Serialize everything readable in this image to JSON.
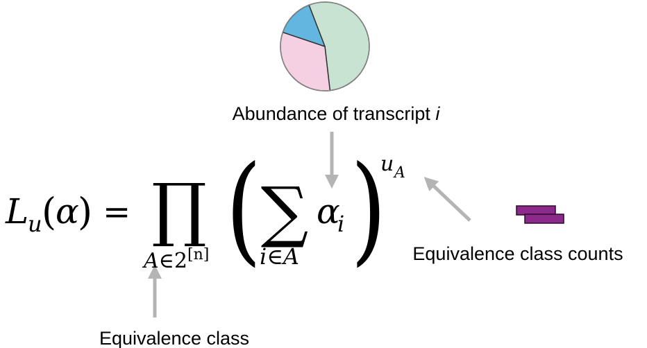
{
  "chart_data": {
    "type": "pie",
    "categories": [
      "",
      "",
      ""
    ],
    "values": [
      54,
      32,
      14
    ],
    "colors": [
      "#c9e3d3",
      "#f5cfe2",
      "#63b6e0"
    ]
  },
  "labels": {
    "abundance_text": "Abundance of transcript ",
    "abundance_var": "i",
    "counts": "Equivalence class counts",
    "class": "Equivalence class"
  },
  "equation": {
    "L": "L",
    "u_sub": "u",
    "paren_open": "(",
    "alpha": "α",
    "paren_close": ")",
    "equals": "=",
    "prod": "∏",
    "prod_sub_A": "A",
    "prod_sub_in": "∈",
    "prod_sub_2": "2",
    "prod_sub_sup": "[n]",
    "big_open": "(",
    "sum": "∑",
    "sum_sub": "i∈A",
    "alpha_i": "α",
    "alpha_i_sub": "i",
    "big_close": ")",
    "exp_u": "u",
    "exp_A": "A"
  },
  "colors": {
    "arrow": "#b4b4b4",
    "bar": "#8c2a8c",
    "pie_outline": "#333333"
  }
}
